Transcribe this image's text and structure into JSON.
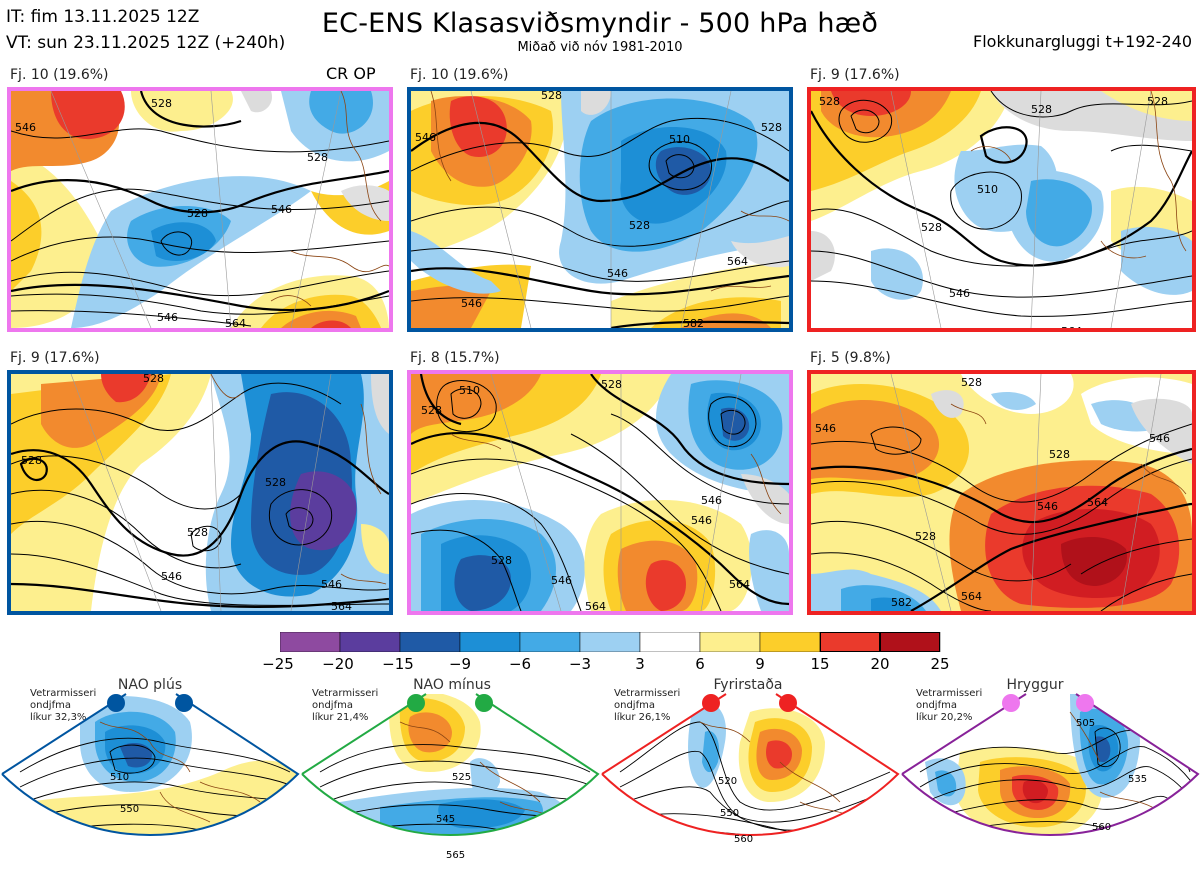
{
  "header": {
    "it_line": "IT: fim 13.11.2025 12Z",
    "vt_line": "VT: sun 23.11.2025 12Z  (+240h)",
    "title": "EC-ENS Klasasviðsmyndir - 500 hPa hæð",
    "subtitle": "Miðað við nóv 1981-2010",
    "window": "Flokkunargluggi t+192-240"
  },
  "colors": {
    "pink": "#ee77ee",
    "blue": "#0055a0",
    "red": "#ee2222",
    "green": "#22aa44",
    "purple": "#882299",
    "neg25": "#8e4aa0",
    "neg20": "#5b3d9e",
    "neg15": "#1f5aa6",
    "neg9": "#1d8fd6",
    "neg6": "#43aae6",
    "neg3": "#9dd0f2",
    "zero": "#ffffff",
    "pos3": "#fdef8e",
    "pos6": "#fcce2a",
    "pos9": "#f28a2e",
    "pos15": "#ea3a2c",
    "pos20": "#d11d22",
    "pos25": "#b0111a"
  },
  "panels": [
    {
      "label": "Fj. 10 (19.6%)",
      "extra": "CR OP",
      "contours": [
        "528",
        "546",
        "528",
        "546",
        "528",
        "546",
        "564"
      ]
    },
    {
      "label": "Fj. 10 (19.6%)",
      "contours": [
        "528",
        "546",
        "510",
        "528",
        "546",
        "564",
        "546",
        "582",
        "528"
      ]
    },
    {
      "label": "Fj. 9 (17.6%)",
      "contours": [
        "528",
        "510",
        "528",
        "546",
        "564",
        "528",
        "528"
      ]
    },
    {
      "label": "Fj. 9 (17.6%)",
      "contours": [
        "528",
        "528",
        "528",
        "546",
        "546",
        "564",
        "528"
      ]
    },
    {
      "label": "Fj. 8 (15.7%)",
      "contours": [
        "528",
        "510",
        "528",
        "528",
        "546",
        "546",
        "564",
        "564",
        "546"
      ]
    },
    {
      "label": "Fj. 5 (9.8%)",
      "contours": [
        "528",
        "546",
        "528",
        "528",
        "546",
        "564",
        "582",
        "564",
        "546"
      ]
    }
  ],
  "colorbar": {
    "ticks": [
      "−25",
      "−20",
      "−15",
      "−9",
      "−6",
      "−3",
      "3",
      "6",
      "9",
      "15",
      "20",
      "25"
    ]
  },
  "regimes": [
    {
      "name": "NAO plús",
      "info": [
        "Vetrarmisseri",
        "ondjfma",
        "líkur 32,3%"
      ],
      "contours": [
        "510",
        "550"
      ]
    },
    {
      "name": "NAO mínus",
      "info": [
        "Vetrarmisseri",
        "ondjfma",
        "líkur 21,4%"
      ],
      "contours": [
        "525",
        "545",
        "565"
      ]
    },
    {
      "name": "Fyrirstaða",
      "info": [
        "Vetrarmisseri",
        "ondjfma",
        "líkur 26,1%"
      ],
      "contours": [
        "520",
        "550",
        "560"
      ]
    },
    {
      "name": "Hryggur",
      "info": [
        "Vetrarmisseri",
        "ondjfma",
        "líkur 20,2%"
      ],
      "contours": [
        "505",
        "535",
        "560"
      ]
    }
  ]
}
